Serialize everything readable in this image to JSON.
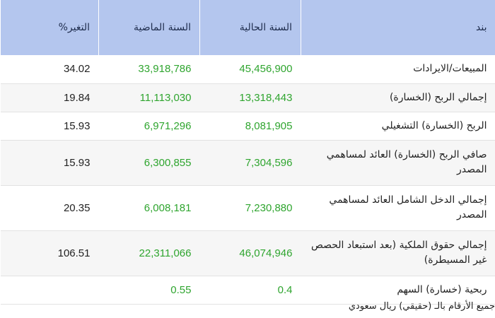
{
  "table": {
    "headers": {
      "item": "بند",
      "current_year": "السنة الحالية",
      "last_year": "السنة الماضية",
      "change": "التغير%"
    },
    "rows": [
      {
        "item": "المبيعات/الايرادات",
        "current": "45,456,900",
        "last": "33,918,786",
        "change": "34.02"
      },
      {
        "item": "إجمالي الربح (الخسارة)",
        "current": "13,318,443",
        "last": "11,113,030",
        "change": "19.84"
      },
      {
        "item": "الربح (الخسارة) التشغيلي",
        "current": "8,081,905",
        "last": "6,971,296",
        "change": "15.93"
      },
      {
        "item": "صافي الربح (الخسارة) العائد لمساهمي المصدر",
        "current": "7,304,596",
        "last": "6,300,855",
        "change": "15.93"
      },
      {
        "item": "إجمالي الدخل الشامل العائد لمساهمي المصدر",
        "current": "7,230,880",
        "last": "6,008,181",
        "change": "20.35"
      },
      {
        "item": "إجمالي حقوق الملكية (بعد استبعاد الحصص غير المسيطرة)",
        "current": "46,074,946",
        "last": "22,311,066",
        "change": "106.51"
      },
      {
        "item": "ربحية (خسارة) السهم",
        "current": "0.4",
        "last": "0.55",
        "change": ""
      }
    ]
  },
  "footer_note": "جميع الأرقام بالـ (حقيقي) ريال سعودي",
  "colors": {
    "header_bg": "#b4c6ee",
    "value_green": "#2fa52f",
    "stripe": "#f6f6f6"
  }
}
